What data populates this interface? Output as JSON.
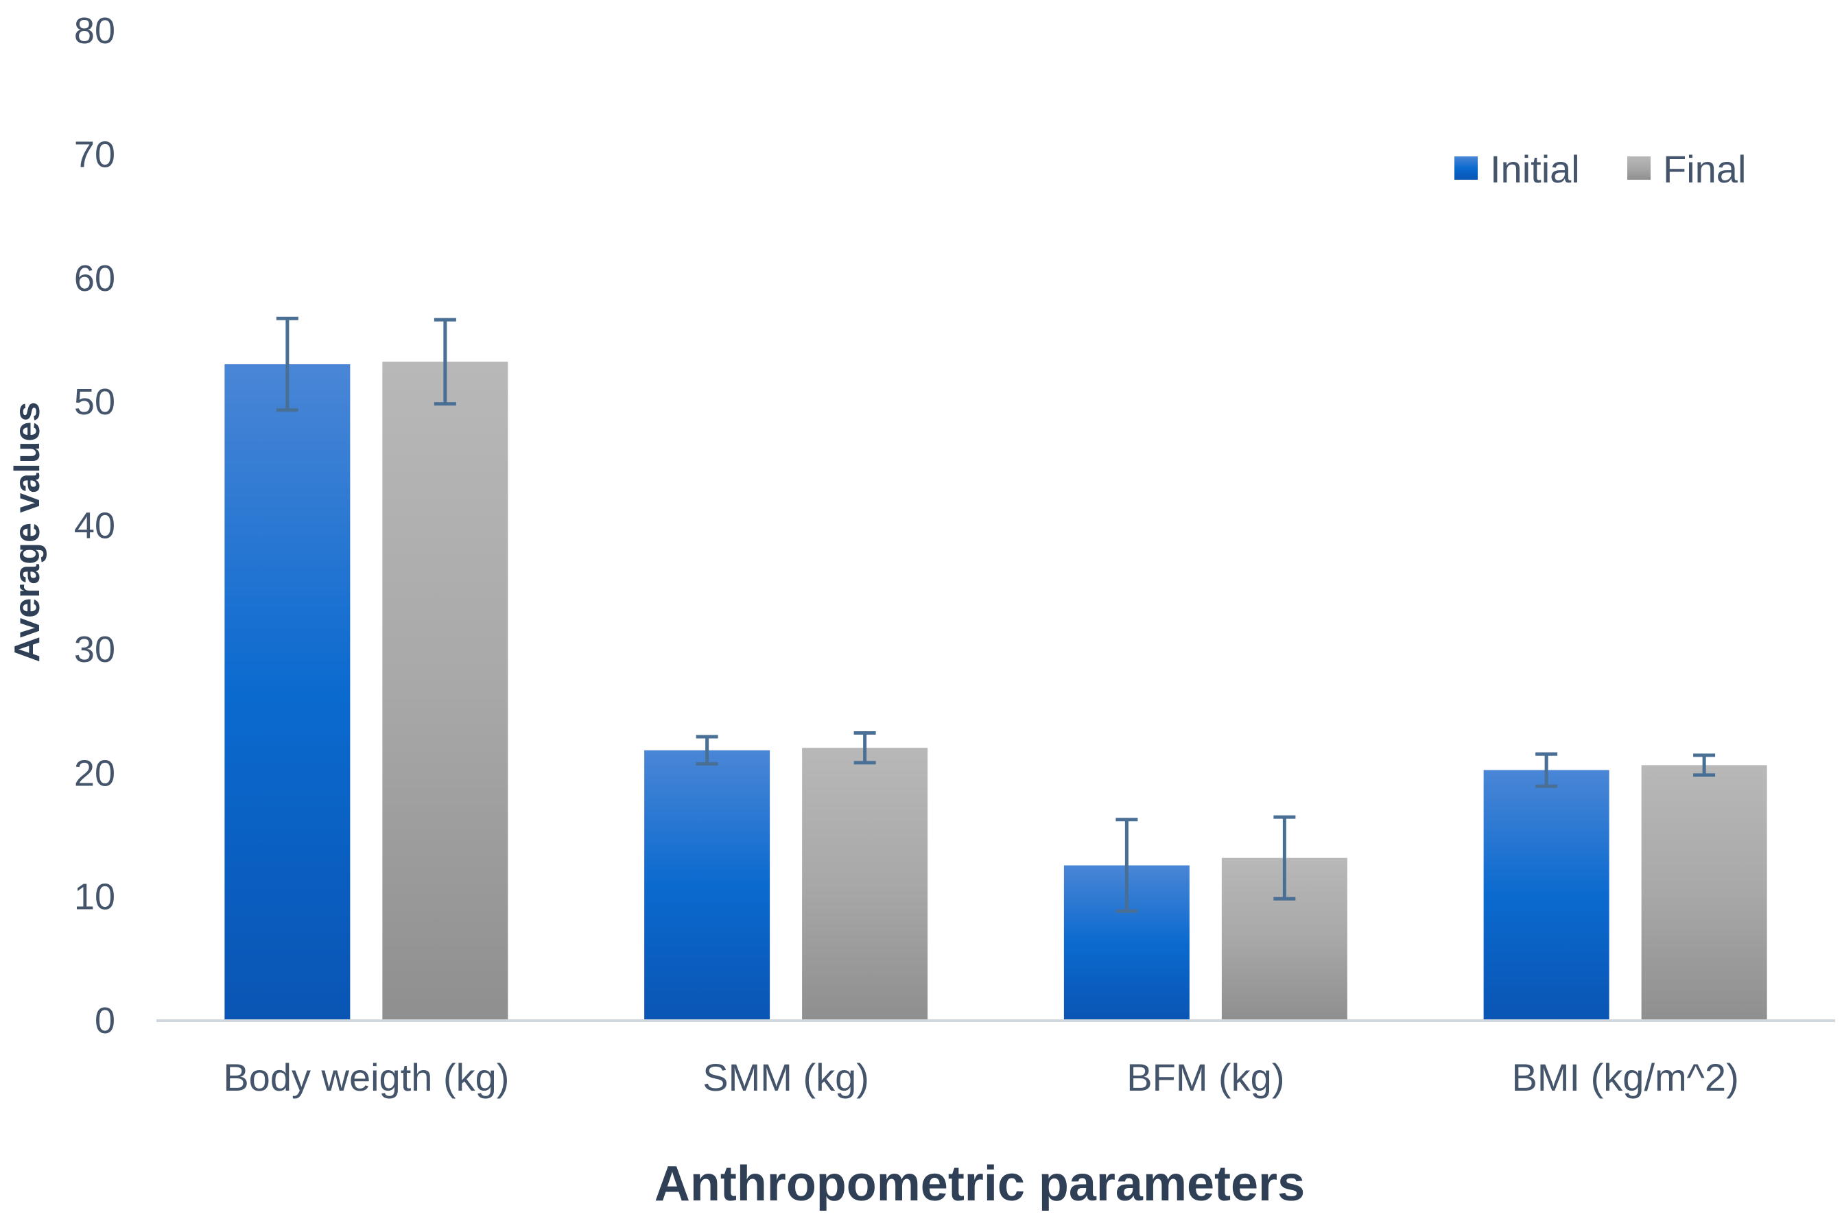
{
  "chart_data": {
    "type": "bar",
    "title": "",
    "xlabel": "Anthropometric parameters",
    "ylabel": "Average values",
    "ylim": [
      0,
      80
    ],
    "yticks": [
      0,
      10,
      20,
      30,
      40,
      50,
      60,
      70,
      80
    ],
    "grid": false,
    "legend_position": "top-right",
    "categories": [
      "Body weigth (kg)",
      "SMM (kg)",
      "BFM (kg)",
      "BMI (kg/m^2)"
    ],
    "series": [
      {
        "name": "Initial",
        "values": [
          53.0,
          21.8,
          12.5,
          20.2
        ],
        "error": [
          3.7,
          1.1,
          3.7,
          1.3
        ],
        "color": "#0A6BD1"
      },
      {
        "name": "Final",
        "values": [
          53.2,
          22.0,
          13.1,
          20.6
        ],
        "error": [
          3.4,
          1.2,
          3.3,
          0.8
        ],
        "color": "#A9A9A9"
      }
    ],
    "error_bar_color": "#4A6F94",
    "axis_color": "#D0D7DE"
  }
}
